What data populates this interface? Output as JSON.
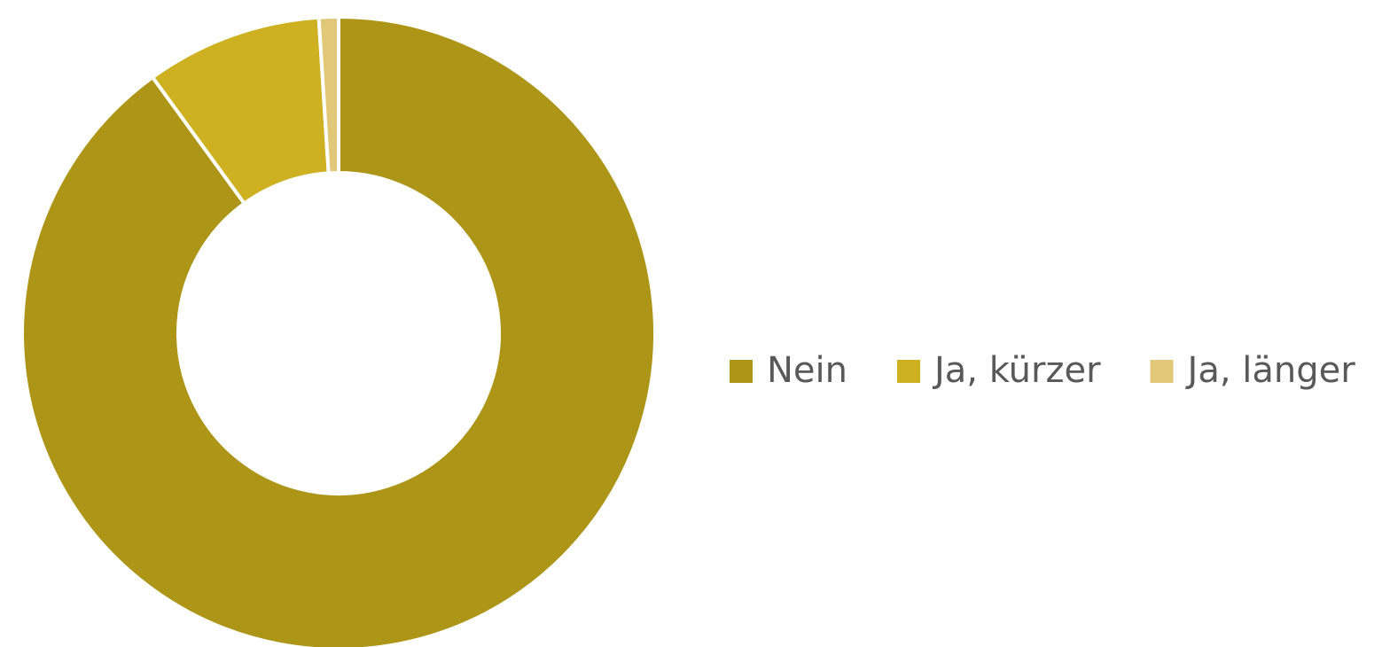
{
  "chart_data": {
    "type": "donut",
    "categories": [
      "Nein",
      "Ja, kürzer",
      "Ja, länger"
    ],
    "values": [
      90,
      9,
      1
    ],
    "colors": [
      "#ad9518",
      "#cdb121",
      "#e0c878"
    ],
    "legend": "right"
  }
}
